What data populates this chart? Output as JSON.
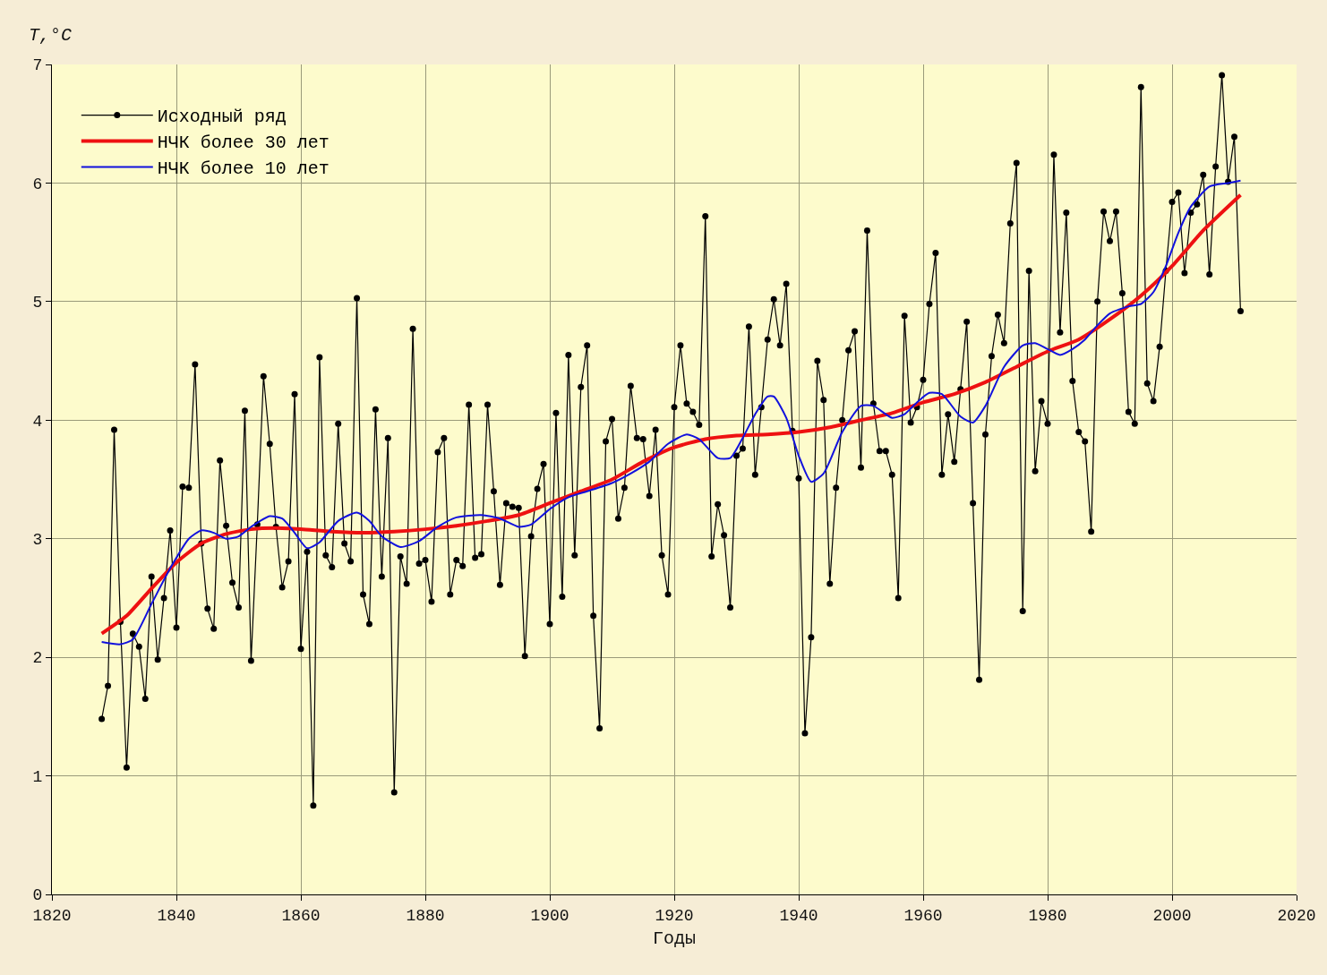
{
  "chart_data": {
    "type": "line",
    "xlabel": "Годы",
    "ylabel": "T,°C",
    "xlim": [
      1820,
      2020
    ],
    "xticks": [
      1820,
      1840,
      1860,
      1880,
      1900,
      1920,
      1940,
      1960,
      1980,
      2000,
      2020
    ],
    "ylim": [
      0,
      7
    ],
    "yticks": [
      0,
      1,
      2,
      3,
      4,
      5,
      6,
      7
    ],
    "grid": true,
    "legend": "top left",
    "series": [
      {
        "name": "Исходный ряд",
        "color": "#000000",
        "marker": "circle",
        "line_style": "solid",
        "x": [
          1828,
          1829,
          1830,
          1831,
          1832,
          1833,
          1834,
          1835,
          1836,
          1837,
          1838,
          1839,
          1840,
          1841,
          1842,
          1843,
          1844,
          1845,
          1846,
          1847,
          1848,
          1849,
          1850,
          1851,
          1852,
          1853,
          1854,
          1855,
          1856,
          1857,
          1858,
          1859,
          1860,
          1861,
          1862,
          1863,
          1864,
          1865,
          1866,
          1867,
          1868,
          1869,
          1870,
          1871,
          1872,
          1873,
          1874,
          1875,
          1876,
          1877,
          1878,
          1879,
          1880,
          1881,
          1882,
          1883,
          1884,
          1885,
          1886,
          1887,
          1888,
          1889,
          1890,
          1891,
          1892,
          1893,
          1894,
          1895,
          1896,
          1897,
          1898,
          1899,
          1900,
          1901,
          1902,
          1903,
          1904,
          1905,
          1906,
          1907,
          1908,
          1909,
          1910,
          1911,
          1912,
          1913,
          1914,
          1915,
          1916,
          1917,
          1918,
          1919,
          1920,
          1921,
          1922,
          1923,
          1924,
          1925,
          1926,
          1927,
          1928,
          1929,
          1930,
          1931,
          1932,
          1933,
          1934,
          1935,
          1936,
          1937,
          1938,
          1939,
          1940,
          1941,
          1942,
          1943,
          1944,
          1945,
          1946,
          1947,
          1948,
          1949,
          1950,
          1951,
          1952,
          1953,
          1954,
          1955,
          1956,
          1957,
          1958,
          1959,
          1960,
          1961,
          1962,
          1963,
          1964,
          1965,
          1966,
          1967,
          1968,
          1969,
          1970,
          1971,
          1972,
          1973,
          1974,
          1975,
          1976,
          1977,
          1978,
          1979,
          1980,
          1981,
          1982,
          1983,
          1984,
          1985,
          1986,
          1987,
          1988,
          1989,
          1990,
          1991,
          1992,
          1993,
          1994,
          1995,
          1996,
          1997,
          1998,
          1999,
          2000,
          2001,
          2002,
          2003,
          2004,
          2005,
          2006,
          2007,
          2008,
          2009,
          2010,
          2011
        ],
        "values": [
          1.48,
          1.76,
          3.92,
          2.3,
          1.07,
          2.2,
          2.09,
          1.65,
          2.68,
          1.98,
          2.5,
          3.07,
          2.25,
          3.44,
          3.43,
          4.47,
          2.96,
          2.41,
          2.24,
          3.66,
          3.11,
          2.63,
          2.42,
          4.08,
          1.97,
          3.12,
          4.37,
          3.8,
          3.1,
          2.59,
          2.81,
          4.22,
          2.07,
          2.89,
          0.75,
          4.53,
          2.86,
          2.76,
          3.97,
          2.96,
          2.81,
          5.03,
          2.53,
          2.28,
          4.09,
          2.68,
          3.85,
          0.86,
          2.85,
          2.62,
          4.77,
          2.79,
          2.82,
          2.47,
          3.73,
          3.85,
          2.53,
          2.82,
          2.77,
          4.13,
          2.84,
          2.87,
          4.13,
          3.4,
          2.61,
          3.3,
          3.27,
          3.26,
          2.01,
          3.02,
          3.42,
          3.63,
          2.28,
          4.06,
          2.51,
          4.55,
          2.86,
          4.28,
          4.63,
          2.35,
          1.4,
          3.82,
          4.01,
          3.17,
          3.43,
          4.29,
          3.85,
          3.84,
          3.36,
          3.92,
          2.86,
          2.53,
          4.11,
          4.63,
          4.14,
          4.07,
          3.96,
          5.72,
          2.85,
          3.29,
          3.03,
          2.42,
          3.7,
          3.76,
          4.79,
          3.54,
          4.11,
          4.68,
          5.02,
          4.63,
          5.15,
          3.91,
          3.51,
          1.36,
          2.17,
          4.5,
          4.17,
          2.62,
          3.43,
          4.0,
          4.59,
          4.75,
          3.6,
          5.6,
          4.14,
          3.74,
          3.74,
          3.54,
          2.5,
          4.88,
          3.98,
          4.11,
          4.34,
          4.98,
          5.41,
          3.54,
          4.05,
          3.65,
          4.26,
          4.83,
          3.3,
          1.81,
          3.88,
          4.54,
          4.89,
          4.65,
          5.66,
          6.17,
          2.39,
          5.26,
          3.57,
          4.16,
          3.97,
          6.24,
          4.74,
          5.75,
          4.33,
          3.9,
          3.82,
          3.06,
          5.0,
          5.76,
          5.51,
          5.76,
          5.07,
          4.07,
          3.97,
          6.81,
          4.31,
          4.16,
          4.62,
          5.26,
          5.84,
          5.92,
          5.24,
          5.75,
          5.82,
          6.07,
          5.23,
          6.14,
          6.91,
          6.01,
          6.39,
          4.92
        ]
      },
      {
        "name": "НЧК более 30 лет",
        "color": "#ee1111",
        "marker": "none",
        "line_style": "solid",
        "x": [
          1828,
          1832,
          1836,
          1840,
          1844,
          1848,
          1852,
          1856,
          1860,
          1865,
          1870,
          1875,
          1880,
          1885,
          1890,
          1895,
          1900,
          1905,
          1910,
          1915,
          1920,
          1925,
          1930,
          1935,
          1940,
          1945,
          1950,
          1955,
          1960,
          1965,
          1970,
          1975,
          1980,
          1985,
          1990,
          1995,
          2000,
          2005,
          2011
        ],
        "values": [
          2.2,
          2.35,
          2.58,
          2.8,
          2.96,
          3.04,
          3.08,
          3.09,
          3.08,
          3.06,
          3.05,
          3.06,
          3.08,
          3.11,
          3.15,
          3.2,
          3.3,
          3.4,
          3.5,
          3.65,
          3.77,
          3.84,
          3.87,
          3.88,
          3.9,
          3.94,
          4.0,
          4.06,
          4.15,
          4.22,
          4.32,
          4.45,
          4.58,
          4.68,
          4.85,
          5.05,
          5.3,
          5.6,
          5.9
        ]
      },
      {
        "name": "НЧК более 10 лет",
        "color": "#1111dd",
        "marker": "none",
        "line_style": "solid",
        "x": [
          1828,
          1831,
          1833,
          1836,
          1839,
          1842,
          1844,
          1846,
          1848,
          1850,
          1852,
          1855,
          1857,
          1859,
          1861,
          1863,
          1866,
          1869,
          1871,
          1873,
          1876,
          1879,
          1882,
          1885,
          1889,
          1892,
          1895,
          1897,
          1900,
          1903,
          1906,
          1910,
          1913,
          1916,
          1919,
          1922,
          1924,
          1927,
          1929,
          1931,
          1933,
          1935,
          1936,
          1938,
          1940,
          1942,
          1944,
          1947,
          1950,
          1952,
          1955,
          1957,
          1959,
          1961,
          1963,
          1966,
          1968,
          1970,
          1973,
          1976,
          1978,
          1980,
          1982,
          1984,
          1986,
          1988,
          1990,
          1993,
          1995,
          1997,
          1999,
          2001,
          2003,
          2006,
          2009,
          2011
        ],
        "values": [
          2.13,
          2.11,
          2.15,
          2.45,
          2.75,
          3.0,
          3.07,
          3.05,
          3.0,
          3.02,
          3.1,
          3.19,
          3.17,
          3.05,
          2.92,
          2.97,
          3.15,
          3.22,
          3.15,
          3.02,
          2.93,
          2.98,
          3.1,
          3.18,
          3.2,
          3.17,
          3.1,
          3.12,
          3.25,
          3.35,
          3.4,
          3.47,
          3.55,
          3.65,
          3.8,
          3.88,
          3.84,
          3.68,
          3.68,
          3.85,
          4.05,
          4.2,
          4.2,
          4.02,
          3.7,
          3.48,
          3.55,
          3.9,
          4.12,
          4.12,
          4.02,
          4.05,
          4.15,
          4.23,
          4.22,
          4.03,
          3.98,
          4.12,
          4.45,
          4.63,
          4.65,
          4.6,
          4.55,
          4.6,
          4.68,
          4.8,
          4.9,
          4.96,
          4.98,
          5.08,
          5.3,
          5.58,
          5.8,
          5.97,
          6.0,
          6.02
        ]
      }
    ]
  }
}
